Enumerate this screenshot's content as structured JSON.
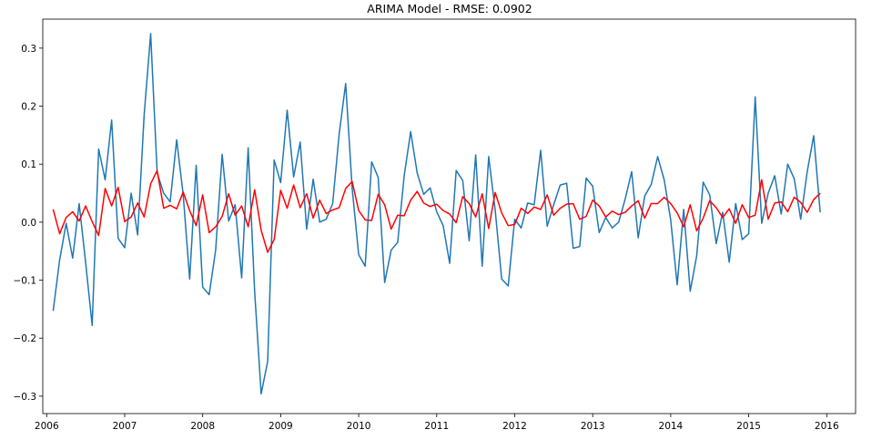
{
  "chart_data": {
    "type": "line",
    "title": "ARIMA Model - RMSE: 0.0902",
    "xlabel": "",
    "ylabel": "",
    "grid": false,
    "xlim": [
      2005.95,
      2016.37
    ],
    "ylim": [
      -0.33,
      0.35
    ],
    "x_ticks": [
      2006,
      2007,
      2008,
      2009,
      2010,
      2011,
      2012,
      2013,
      2014,
      2015,
      2016
    ],
    "x_tick_labels": [
      "2006",
      "2007",
      "2008",
      "2009",
      "2010",
      "2011",
      "2012",
      "2013",
      "2014",
      "2015",
      "2016"
    ],
    "y_ticks": [
      -0.3,
      -0.2,
      -0.1,
      0.0,
      0.1,
      0.2,
      0.3
    ],
    "y_tick_labels": [
      "−0.3",
      "−0.2",
      "−0.1",
      "0.0",
      "0.1",
      "0.2",
      "0.3"
    ],
    "x_start": 2006.083,
    "x_step": 0.0833333,
    "series": [
      {
        "color": "#1f77b4",
        "values": [
          -0.153,
          -0.065,
          -0.002,
          -0.062,
          0.032,
          -0.07,
          -0.178,
          0.126,
          0.073,
          0.176,
          -0.028,
          -0.044,
          0.05,
          -0.022,
          0.185,
          0.325,
          0.085,
          0.05,
          0.035,
          0.142,
          0.048,
          -0.098,
          0.098,
          -0.112,
          -0.125,
          -0.048,
          0.117,
          0.002,
          0.03,
          -0.096,
          0.128,
          -0.12,
          -0.296,
          -0.24,
          0.107,
          0.068,
          0.193,
          0.078,
          0.138,
          -0.012,
          0.074,
          0.0,
          0.005,
          0.032,
          0.152,
          0.239,
          0.058,
          -0.056,
          -0.076,
          0.104,
          0.077,
          -0.104,
          -0.048,
          -0.035,
          0.08,
          0.156,
          0.085,
          0.048,
          0.059,
          0.018,
          -0.006,
          -0.071,
          0.089,
          0.072,
          -0.032,
          0.116,
          -0.076,
          0.113,
          0.021,
          -0.098,
          -0.11,
          0.005,
          -0.01,
          0.033,
          0.03,
          0.124,
          -0.007,
          0.03,
          0.064,
          0.067,
          -0.045,
          -0.042,
          0.076,
          0.062,
          -0.018,
          0.008,
          -0.01,
          0.0,
          0.04,
          0.087,
          -0.027,
          0.045,
          0.065,
          0.113,
          0.073,
          0.004,
          -0.108,
          0.022,
          -0.119,
          -0.058,
          0.069,
          0.047,
          -0.037,
          0.017,
          -0.069,
          0.032,
          -0.03,
          -0.02,
          0.216,
          -0.002,
          0.05,
          0.08,
          0.014,
          0.1,
          0.075,
          0.005,
          0.087,
          0.149,
          0.017
        ]
      },
      {
        "color": "#ff0000",
        "values": [
          0.022,
          -0.02,
          0.008,
          0.018,
          0.002,
          0.028,
          0.001,
          -0.023,
          0.058,
          0.028,
          0.06,
          0.001,
          0.009,
          0.033,
          0.009,
          0.066,
          0.089,
          0.024,
          0.029,
          0.023,
          0.052,
          0.02,
          -0.006,
          0.047,
          -0.018,
          -0.008,
          0.01,
          0.049,
          0.012,
          0.028,
          -0.008,
          0.056,
          -0.014,
          -0.052,
          -0.03,
          0.055,
          0.024,
          0.064,
          0.025,
          0.049,
          0.007,
          0.038,
          0.015,
          0.021,
          0.025,
          0.058,
          0.07,
          0.02,
          0.004,
          0.003,
          0.048,
          0.03,
          -0.012,
          0.012,
          0.011,
          0.038,
          0.053,
          0.033,
          0.027,
          0.031,
          0.02,
          0.014,
          -0.001,
          0.044,
          0.032,
          0.009,
          0.049,
          -0.011,
          0.051,
          0.016,
          -0.006,
          -0.004,
          0.024,
          0.015,
          0.026,
          0.022,
          0.047,
          0.012,
          0.024,
          0.031,
          0.032,
          0.005,
          0.01,
          0.038,
          0.028,
          0.009,
          0.019,
          0.013,
          0.017,
          0.028,
          0.037,
          0.007,
          0.032,
          0.032,
          0.043,
          0.032,
          0.016,
          -0.008,
          0.03,
          -0.015,
          0.007,
          0.037,
          0.025,
          0.008,
          0.023,
          -0.002,
          0.03,
          0.008,
          0.012,
          0.073,
          0.005,
          0.033,
          0.035,
          0.018,
          0.043,
          0.034,
          0.017,
          0.039,
          0.05
        ]
      }
    ]
  }
}
